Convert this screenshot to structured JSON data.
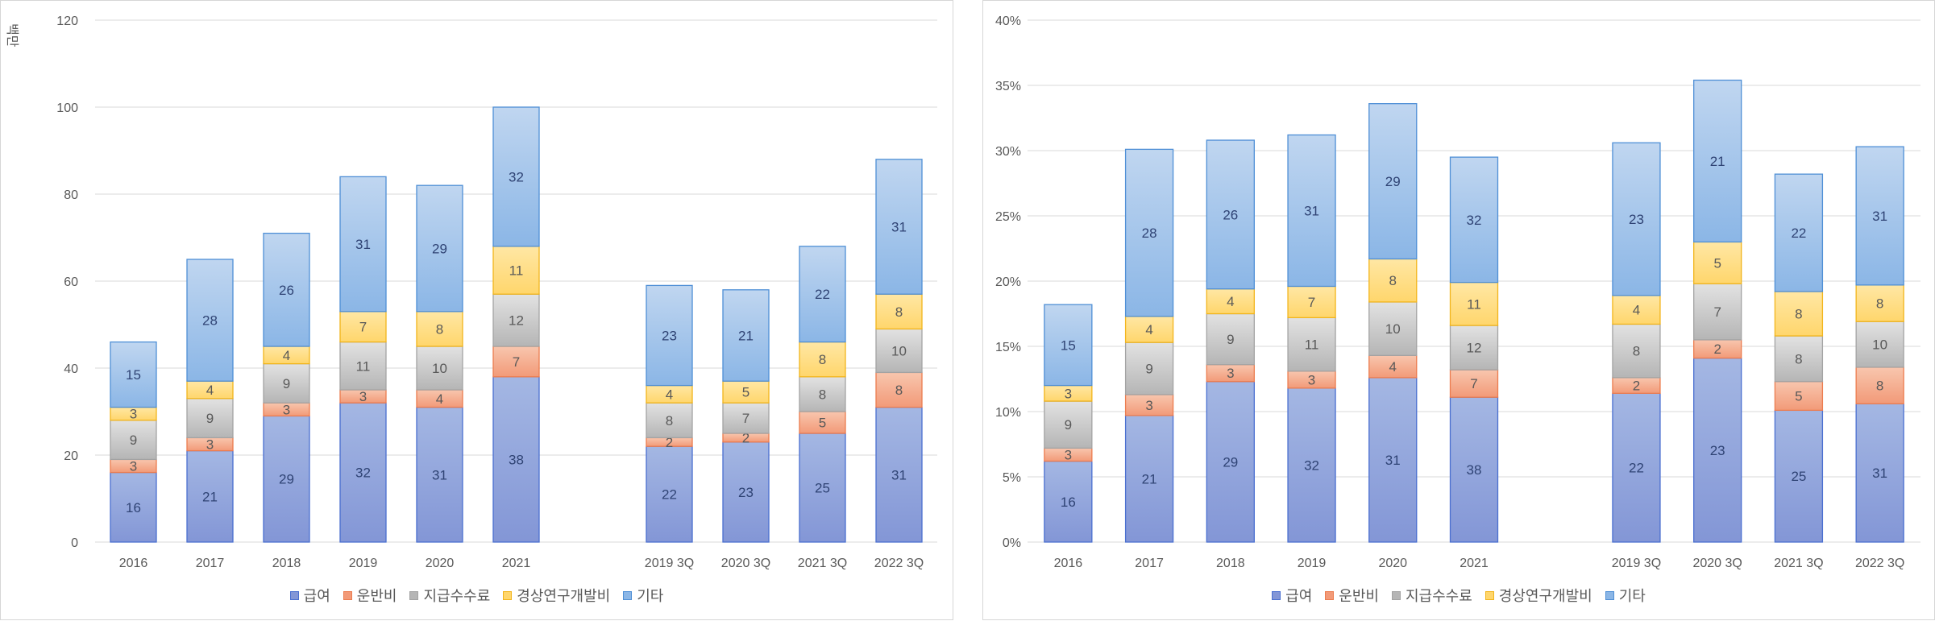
{
  "colors": {
    "급여": {
      "top": "#a4b7e3",
      "bottom": "#8396d6",
      "stroke": "#4a6fd0"
    },
    "운반비": {
      "top": "#f8c6ae",
      "bottom": "#f29a78",
      "stroke": "#ec7c4f"
    },
    "지급수수료": {
      "top": "#e2e2e2",
      "bottom": "#b5b5b5",
      "stroke": "#a3a3a3"
    },
    "경상연구개발비": {
      "top": "#ffe7a4",
      "bottom": "#ffd66c",
      "stroke": "#f2b51c"
    },
    "기타": {
      "top": "#c0d6f0",
      "bottom": "#8bb6e6",
      "stroke": "#4f8fd6"
    },
    "grid": "#d9d9d9",
    "label_dark": "#2f4374",
    "label_light": "#595959"
  },
  "legend": [
    "급여",
    "운반비",
    "지급수수료",
    "경상연구개발비",
    "기타"
  ],
  "chart_data": [
    {
      "type": "bar",
      "stacked": true,
      "title": "",
      "ylabel": "백만",
      "ylim": [
        0,
        120
      ],
      "yticks": [
        "0",
        "20",
        "40",
        "60",
        "80",
        "100",
        "120"
      ],
      "categories": [
        "2016",
        "2017",
        "2018",
        "2019",
        "2020",
        "2021",
        "",
        "2019 3Q",
        "2020 3Q",
        "2021 3Q",
        "2022 3Q"
      ],
      "series": [
        {
          "name": "급여",
          "values": [
            16,
            21,
            29,
            32,
            31,
            38,
            null,
            22,
            23,
            25,
            31
          ],
          "labels": [
            "16",
            "21",
            "29",
            "32",
            "31",
            "38",
            "",
            "22",
            "23",
            "25",
            "31"
          ]
        },
        {
          "name": "운반비",
          "values": [
            3,
            3,
            3,
            3,
            4,
            7,
            null,
            2,
            2,
            5,
            8
          ],
          "labels": [
            "3",
            "3",
            "3",
            "3",
            "4",
            "7",
            "",
            "2",
            "2",
            "5",
            "8"
          ]
        },
        {
          "name": "지급수수료",
          "values": [
            9,
            9,
            9,
            11,
            10,
            12,
            null,
            8,
            7,
            8,
            10
          ],
          "labels": [
            "9",
            "9",
            "9",
            "11",
            "10",
            "12",
            "",
            "8",
            "7",
            "8",
            "10"
          ]
        },
        {
          "name": "경상연구개발비",
          "values": [
            3,
            4,
            4,
            7,
            8,
            11,
            null,
            4,
            5,
            8,
            8
          ],
          "labels": [
            "3",
            "4",
            "4",
            "7",
            "8",
            "11",
            "",
            "4",
            "5",
            "8",
            "8"
          ]
        },
        {
          "name": "기타",
          "values": [
            15,
            28,
            26,
            31,
            29,
            32,
            null,
            23,
            21,
            22,
            31
          ],
          "labels": [
            "15",
            "28",
            "26",
            "31",
            "29",
            "32",
            "",
            "23",
            "21",
            "22",
            "31"
          ]
        }
      ]
    },
    {
      "type": "bar",
      "stacked": true,
      "title": "",
      "ylim": [
        0,
        40
      ],
      "yticks": [
        "0%",
        "5%",
        "10%",
        "15%",
        "20%",
        "25%",
        "30%",
        "35%",
        "40%"
      ],
      "categories": [
        "2016",
        "2017",
        "2018",
        "2019",
        "2020",
        "2021",
        "",
        "2019 3Q",
        "2020 3Q",
        "2021 3Q",
        "2022 3Q"
      ],
      "series": [
        {
          "name": "급여",
          "values": [
            6.2,
            9.7,
            12.3,
            11.8,
            12.6,
            11.1,
            null,
            11.4,
            14.1,
            10.1,
            10.6
          ],
          "labels": [
            "16",
            "21",
            "29",
            "32",
            "31",
            "38",
            "",
            "22",
            "23",
            "25",
            "31"
          ]
        },
        {
          "name": "운반비",
          "values": [
            1.0,
            1.6,
            1.3,
            1.3,
            1.7,
            2.1,
            null,
            1.2,
            1.4,
            2.2,
            2.8
          ],
          "labels": [
            "3",
            "3",
            "3",
            "3",
            "4",
            "7",
            "",
            "2",
            "2",
            "5",
            "8"
          ]
        },
        {
          "name": "지급수수료",
          "values": [
            3.6,
            4.0,
            3.9,
            4.1,
            4.1,
            3.4,
            null,
            4.1,
            4.3,
            3.5,
            3.5
          ],
          "labels": [
            "9",
            "9",
            "9",
            "11",
            "10",
            "12",
            "",
            "8",
            "7",
            "8",
            "10"
          ]
        },
        {
          "name": "경상연구개발비",
          "values": [
            1.2,
            2.0,
            1.9,
            2.4,
            3.3,
            3.3,
            null,
            2.2,
            3.2,
            3.4,
            2.8
          ],
          "labels": [
            "3",
            "4",
            "4",
            "7",
            "8",
            "11",
            "",
            "4",
            "5",
            "8",
            "8"
          ]
        },
        {
          "name": "기타",
          "values": [
            6.2,
            12.8,
            11.4,
            11.6,
            11.9,
            9.6,
            null,
            11.7,
            12.4,
            9.0,
            10.6
          ],
          "labels": [
            "15",
            "28",
            "26",
            "31",
            "29",
            "32",
            "",
            "23",
            "21",
            "22",
            "31"
          ]
        }
      ]
    }
  ]
}
